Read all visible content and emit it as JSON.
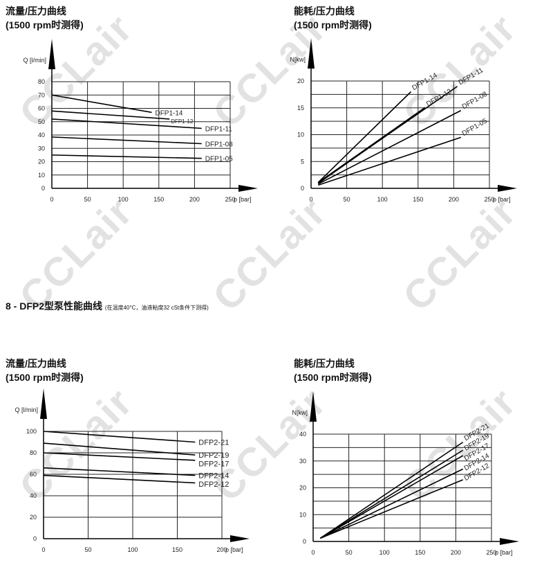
{
  "watermark": "CCLair",
  "section_heading": {
    "text": "8 - DFP2型泵性能曲线",
    "note": "(在温度40°C，油液粘度32 cSt条件下测得)"
  },
  "chart_data": [
    {
      "type": "line",
      "title": "流量/压力曲线",
      "subtitle": "(1500 rpm时测得)",
      "xlabel": "p [bar]",
      "ylabel": "Q [l/min]",
      "xlim": [
        0,
        250
      ],
      "ylim": [
        0,
        80
      ],
      "xticks": [
        0,
        50,
        100,
        150,
        200,
        250
      ],
      "yticks": [
        0,
        10,
        20,
        30,
        40,
        50,
        60,
        70,
        80
      ],
      "grid": true,
      "series": [
        {
          "name": "DFP1-14",
          "x": [
            0,
            140
          ],
          "y": [
            70,
            57
          ]
        },
        {
          "name": "DFP1-12",
          "x": [
            0,
            165
          ],
          "y": [
            58,
            52
          ]
        },
        {
          "name": "DFP1-11",
          "x": [
            0,
            210
          ],
          "y": [
            52,
            45
          ]
        },
        {
          "name": "DFP1-08",
          "x": [
            0,
            210
          ],
          "y": [
            38.5,
            33.5
          ]
        },
        {
          "name": "DFP1-05",
          "x": [
            0,
            210
          ],
          "y": [
            25,
            22.5
          ]
        }
      ]
    },
    {
      "type": "line",
      "title": "能耗/压力曲线",
      "subtitle": "(1500 rpm时测得)",
      "xlabel": "p [bar]",
      "ylabel": "N[kw]",
      "xlim": [
        0,
        250
      ],
      "ylim": [
        0,
        20
      ],
      "xticks": [
        0,
        50,
        100,
        150,
        200,
        250
      ],
      "yticks": [
        0,
        5,
        10,
        15,
        20
      ],
      "grid": true,
      "series": [
        {
          "name": "DFP1-14",
          "x": [
            10,
            140
          ],
          "y": [
            1.1,
            18
          ]
        },
        {
          "name": "DFP1-12",
          "x": [
            10,
            160
          ],
          "y": [
            1.0,
            15
          ]
        },
        {
          "name": "DFP1-11",
          "x": [
            10,
            205
          ],
          "y": [
            1.0,
            19
          ]
        },
        {
          "name": "DFP1-08",
          "x": [
            10,
            210
          ],
          "y": [
            0.8,
            14.5
          ]
        },
        {
          "name": "DFP1-05",
          "x": [
            10,
            210
          ],
          "y": [
            0.6,
            9.5
          ]
        }
      ]
    },
    {
      "type": "line",
      "title": "流量/压力曲线",
      "subtitle": "(1500 rpm时测得)",
      "xlabel": "p [bar]",
      "ylabel": "Q [l/min]",
      "xlim": [
        0,
        200
      ],
      "ylim": [
        0,
        100
      ],
      "xticks": [
        0,
        50,
        100,
        150,
        200
      ],
      "yticks": [
        0,
        20,
        40,
        60,
        80,
        100
      ],
      "grid": true,
      "series": [
        {
          "name": "DFP2-21",
          "x": [
            0,
            170
          ],
          "y": [
            100,
            90
          ]
        },
        {
          "name": "DFP2-19",
          "x": [
            0,
            170
          ],
          "y": [
            89,
            78
          ]
        },
        {
          "name": "DFP2-17",
          "x": [
            0,
            170
          ],
          "y": [
            80,
            73
          ]
        },
        {
          "name": "DFP2-14",
          "x": [
            0,
            170
          ],
          "y": [
            66,
            59
          ]
        },
        {
          "name": "DFP2-12",
          "x": [
            0,
            170
          ],
          "y": [
            59,
            52
          ]
        }
      ]
    },
    {
      "type": "line",
      "title": "能耗/压力曲线",
      "subtitle": "(1500 rpm时测得)",
      "xlabel": "p [bar]",
      "ylabel": "N[kw]",
      "xlim": [
        0,
        250
      ],
      "ylim": [
        0,
        40
      ],
      "xticks": [
        0,
        50,
        100,
        150,
        200,
        250
      ],
      "yticks": [
        0,
        10,
        20,
        30,
        40
      ],
      "grid": true,
      "series": [
        {
          "name": "DFP2-21",
          "x": [
            10,
            210
          ],
          "y": [
            1.2,
            37
          ]
        },
        {
          "name": "DFP2-19",
          "x": [
            10,
            210
          ],
          "y": [
            1.2,
            34
          ]
        },
        {
          "name": "DFP2-17",
          "x": [
            10,
            210
          ],
          "y": [
            1.2,
            32
          ]
        },
        {
          "name": "DFP2-14",
          "x": [
            10,
            210
          ],
          "y": [
            1.2,
            27
          ]
        },
        {
          "name": "DFP2-12",
          "x": [
            10,
            210
          ],
          "y": [
            1.2,
            23
          ]
        }
      ]
    }
  ]
}
